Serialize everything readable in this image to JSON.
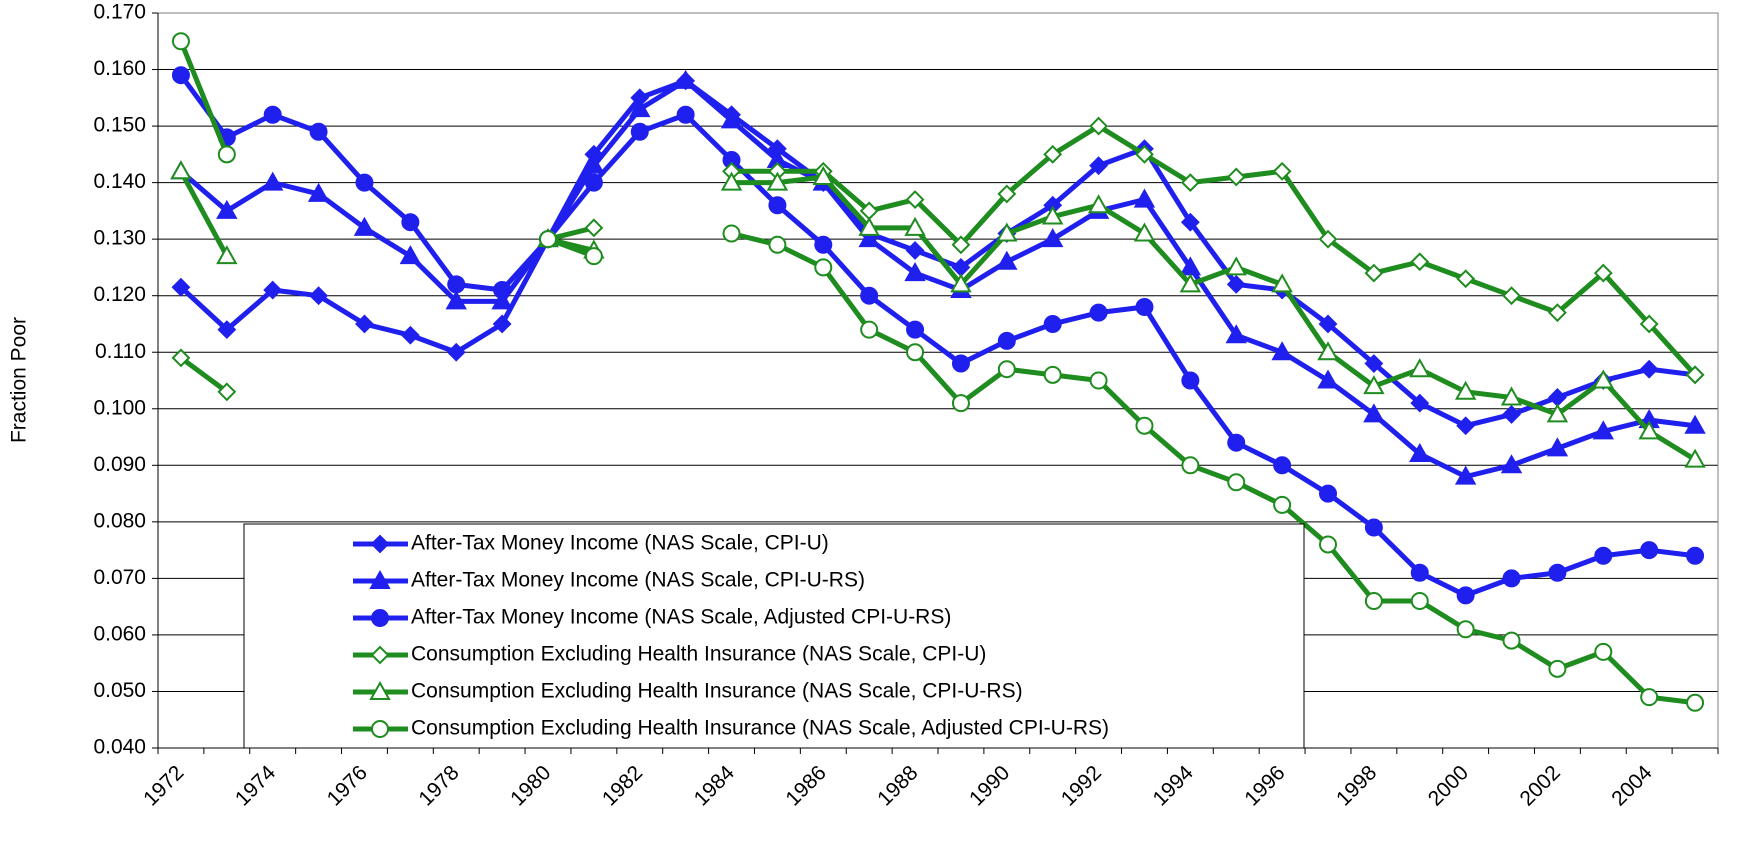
{
  "chart_data": {
    "type": "line",
    "y_label": "Fraction Poor",
    "categories": [
      "1972",
      null,
      "1974",
      null,
      "1976",
      null,
      "1978",
      null,
      "1980",
      null,
      "1982",
      null,
      "1984",
      null,
      "1986",
      null,
      "1988",
      null,
      "1990",
      null,
      "1992",
      null,
      "1994",
      null,
      "1996",
      null,
      "1998",
      null,
      "2000",
      null,
      "2002",
      null,
      "2004",
      null
    ],
    "ylim": [
      0.04,
      0.17
    ],
    "yticks": [
      {
        "value": 0.04,
        "label": "0.040"
      },
      {
        "value": 0.05,
        "label": "0.050"
      },
      {
        "value": 0.06,
        "label": "0.060"
      },
      {
        "value": 0.07,
        "label": "0.070"
      },
      {
        "value": 0.08,
        "label": "0.080"
      },
      {
        "value": 0.09,
        "label": "0.090"
      },
      {
        "value": 0.1,
        "label": "0.100"
      },
      {
        "value": 0.11,
        "label": "0.110"
      },
      {
        "value": 0.12,
        "label": "0.120"
      },
      {
        "value": 0.13,
        "label": "0.130"
      },
      {
        "value": 0.14,
        "label": "0.140"
      },
      {
        "value": 0.15,
        "label": "0.150"
      },
      {
        "value": 0.16,
        "label": "0.160"
      },
      {
        "value": 0.17,
        "label": "0.170"
      }
    ],
    "grid": true,
    "legend": "lower-left",
    "series": [
      {
        "name": "After-Tax Money Income (NAS Scale, CPI-U)",
        "color": "#2020ee",
        "marker": "diamond",
        "marker_filled": true,
        "values": [
          0.1215,
          0.114,
          0.121,
          0.12,
          0.115,
          0.113,
          0.11,
          0.115,
          0.13,
          0.145,
          0.155,
          0.158,
          0.152,
          0.146,
          0.14,
          0.131,
          0.128,
          0.125,
          0.131,
          0.136,
          0.143,
          0.146,
          0.133,
          0.122,
          0.121,
          0.115,
          0.108,
          0.101,
          0.097,
          0.099,
          0.102,
          0.105,
          0.107,
          0.106
        ]
      },
      {
        "name": "After-Tax Money Income (NAS Scale, CPI-U-RS)",
        "color": "#2020ee",
        "marker": "triangle",
        "marker_filled": true,
        "values": [
          0.142,
          0.135,
          0.14,
          0.138,
          0.132,
          0.127,
          0.119,
          0.119,
          0.13,
          0.143,
          0.153,
          0.158,
          0.151,
          0.144,
          0.14,
          0.13,
          0.124,
          0.121,
          0.126,
          0.13,
          0.135,
          0.137,
          0.125,
          0.113,
          0.11,
          0.105,
          0.099,
          0.092,
          0.088,
          0.09,
          0.093,
          0.096,
          0.098,
          0.097
        ]
      },
      {
        "name": "After-Tax Money Income (NAS Scale, Adjusted CPI-U-RS)",
        "color": "#2020ee",
        "marker": "circle",
        "marker_filled": true,
        "values": [
          0.159,
          0.148,
          0.152,
          0.149,
          0.14,
          0.133,
          0.122,
          0.121,
          0.13,
          0.14,
          0.149,
          0.152,
          0.144,
          0.136,
          0.129,
          0.12,
          0.114,
          0.108,
          0.112,
          0.115,
          0.117,
          0.118,
          0.105,
          0.094,
          0.09,
          0.085,
          0.079,
          0.071,
          0.067,
          0.07,
          0.071,
          0.074,
          0.075,
          0.074
        ]
      },
      {
        "name": "Consumption Excluding Health Insurance (NAS Scale, CPI-U)",
        "color": "#1e8c1e",
        "marker": "diamond",
        "marker_filled": false,
        "values": [
          0.109,
          0.103,
          null,
          null,
          null,
          null,
          null,
          null,
          0.13,
          0.132,
          null,
          null,
          0.142,
          0.142,
          0.142,
          0.135,
          0.137,
          0.129,
          0.138,
          0.145,
          0.15,
          0.145,
          0.14,
          0.141,
          0.142,
          0.13,
          0.124,
          0.126,
          0.123,
          0.12,
          0.117,
          0.124,
          0.115,
          0.106
        ]
      },
      {
        "name": "Consumption Excluding Health Insurance (NAS Scale, CPI-U-RS)",
        "color": "#1e8c1e",
        "marker": "triangle",
        "marker_filled": false,
        "values": [
          0.142,
          0.127,
          null,
          null,
          null,
          null,
          null,
          null,
          0.13,
          0.128,
          null,
          null,
          0.14,
          0.14,
          0.141,
          0.132,
          0.132,
          0.122,
          0.131,
          0.134,
          0.136,
          0.131,
          0.122,
          0.125,
          0.122,
          0.11,
          0.104,
          0.107,
          0.103,
          0.102,
          0.099,
          0.105,
          0.096,
          0.091
        ]
      },
      {
        "name": "Consumption Excluding Health Insurance (NAS Scale, Adjusted CPI-U-RS)",
        "color": "#1e8c1e",
        "marker": "circle",
        "marker_filled": false,
        "values": [
          0.165,
          0.145,
          null,
          null,
          null,
          null,
          null,
          null,
          0.13,
          0.127,
          null,
          null,
          0.131,
          0.129,
          0.125,
          0.114,
          0.11,
          0.101,
          0.107,
          0.106,
          0.105,
          0.097,
          0.09,
          0.087,
          0.083,
          0.076,
          0.066,
          0.066,
          0.061,
          0.059,
          0.054,
          0.057,
          0.049,
          0.048
        ]
      }
    ]
  }
}
